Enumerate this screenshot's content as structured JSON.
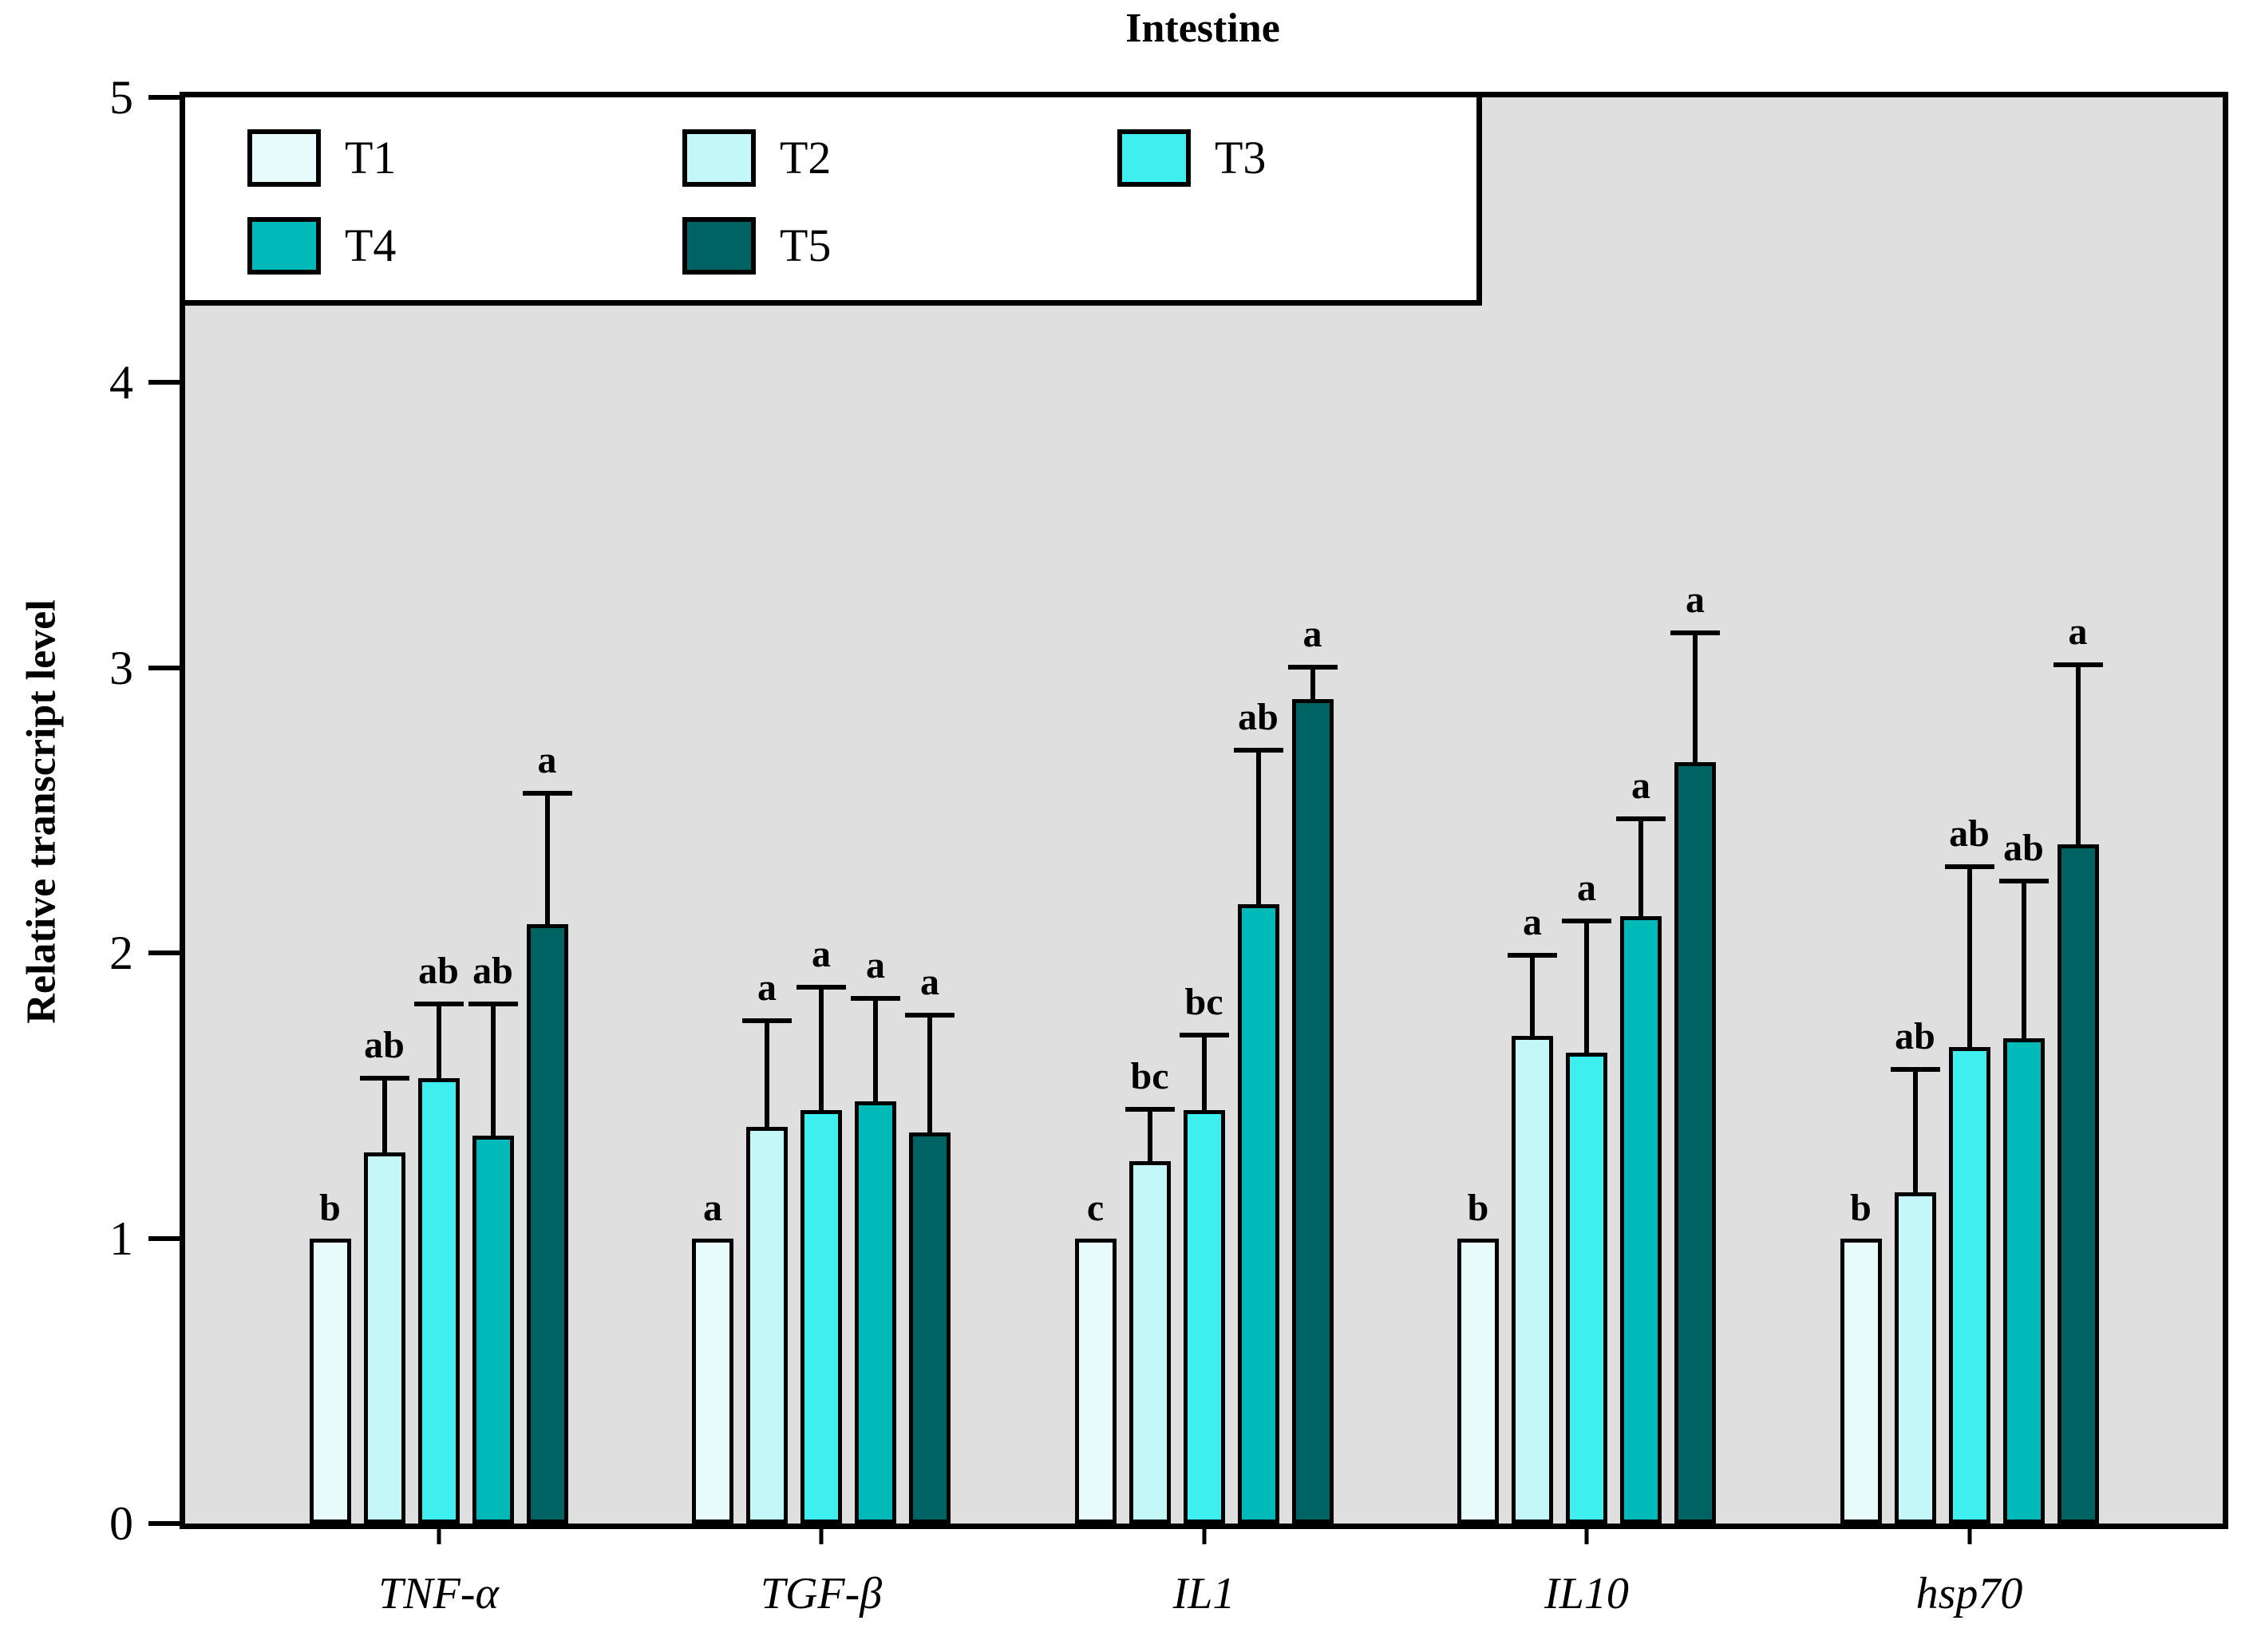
{
  "chart_data": {
    "type": "bar",
    "title": "Intestine",
    "xlabel": "",
    "ylabel": "Relative transcript level",
    "ylim": [
      0,
      5
    ],
    "yticks": [
      0,
      1,
      2,
      3,
      4,
      5
    ],
    "grid": false,
    "plot_background": "#DFDFDF",
    "bar_border_color": "#000000",
    "legend_position": "top-left",
    "categories": [
      "TNF-α",
      "TGF-β",
      "IL1",
      "IL10",
      "hsp70"
    ],
    "series": [
      {
        "name": "T1",
        "color": "#E8FBFB",
        "values": [
          1.0,
          1.0,
          1.0,
          1.0,
          1.0
        ],
        "errors": [
          0,
          0,
          0,
          0,
          0
        ],
        "letters": [
          "b",
          "a",
          "c",
          "b",
          "b"
        ]
      },
      {
        "name": "T2",
        "color": "#C4F7F7",
        "values": [
          1.3,
          1.39,
          1.27,
          1.71,
          1.16
        ],
        "errors": [
          0.27,
          0.38,
          0.19,
          0.29,
          0.44
        ],
        "letters": [
          "ab",
          "a",
          "bc",
          "a",
          "ab"
        ]
      },
      {
        "name": "T3",
        "color": "#3FEEEE",
        "values": [
          1.56,
          1.45,
          1.45,
          1.65,
          1.67
        ],
        "errors": [
          0.27,
          0.44,
          0.27,
          0.47,
          0.64
        ],
        "letters": [
          "ab",
          "a",
          "bc",
          "a",
          "ab"
        ]
      },
      {
        "name": "T4",
        "color": "#00B9B9",
        "values": [
          1.36,
          1.48,
          2.17,
          2.13,
          1.7
        ],
        "errors": [
          0.47,
          0.37,
          0.55,
          0.35,
          0.56
        ],
        "letters": [
          "ab",
          "a",
          "ab",
          "a",
          "ab"
        ]
      },
      {
        "name": "T5",
        "color": "#006363",
        "values": [
          2.1,
          1.37,
          2.89,
          2.67,
          2.38
        ],
        "errors": [
          0.47,
          0.42,
          0.12,
          0.46,
          0.64
        ],
        "letters": [
          "a",
          "a",
          "a",
          "a",
          "a"
        ]
      }
    ]
  }
}
